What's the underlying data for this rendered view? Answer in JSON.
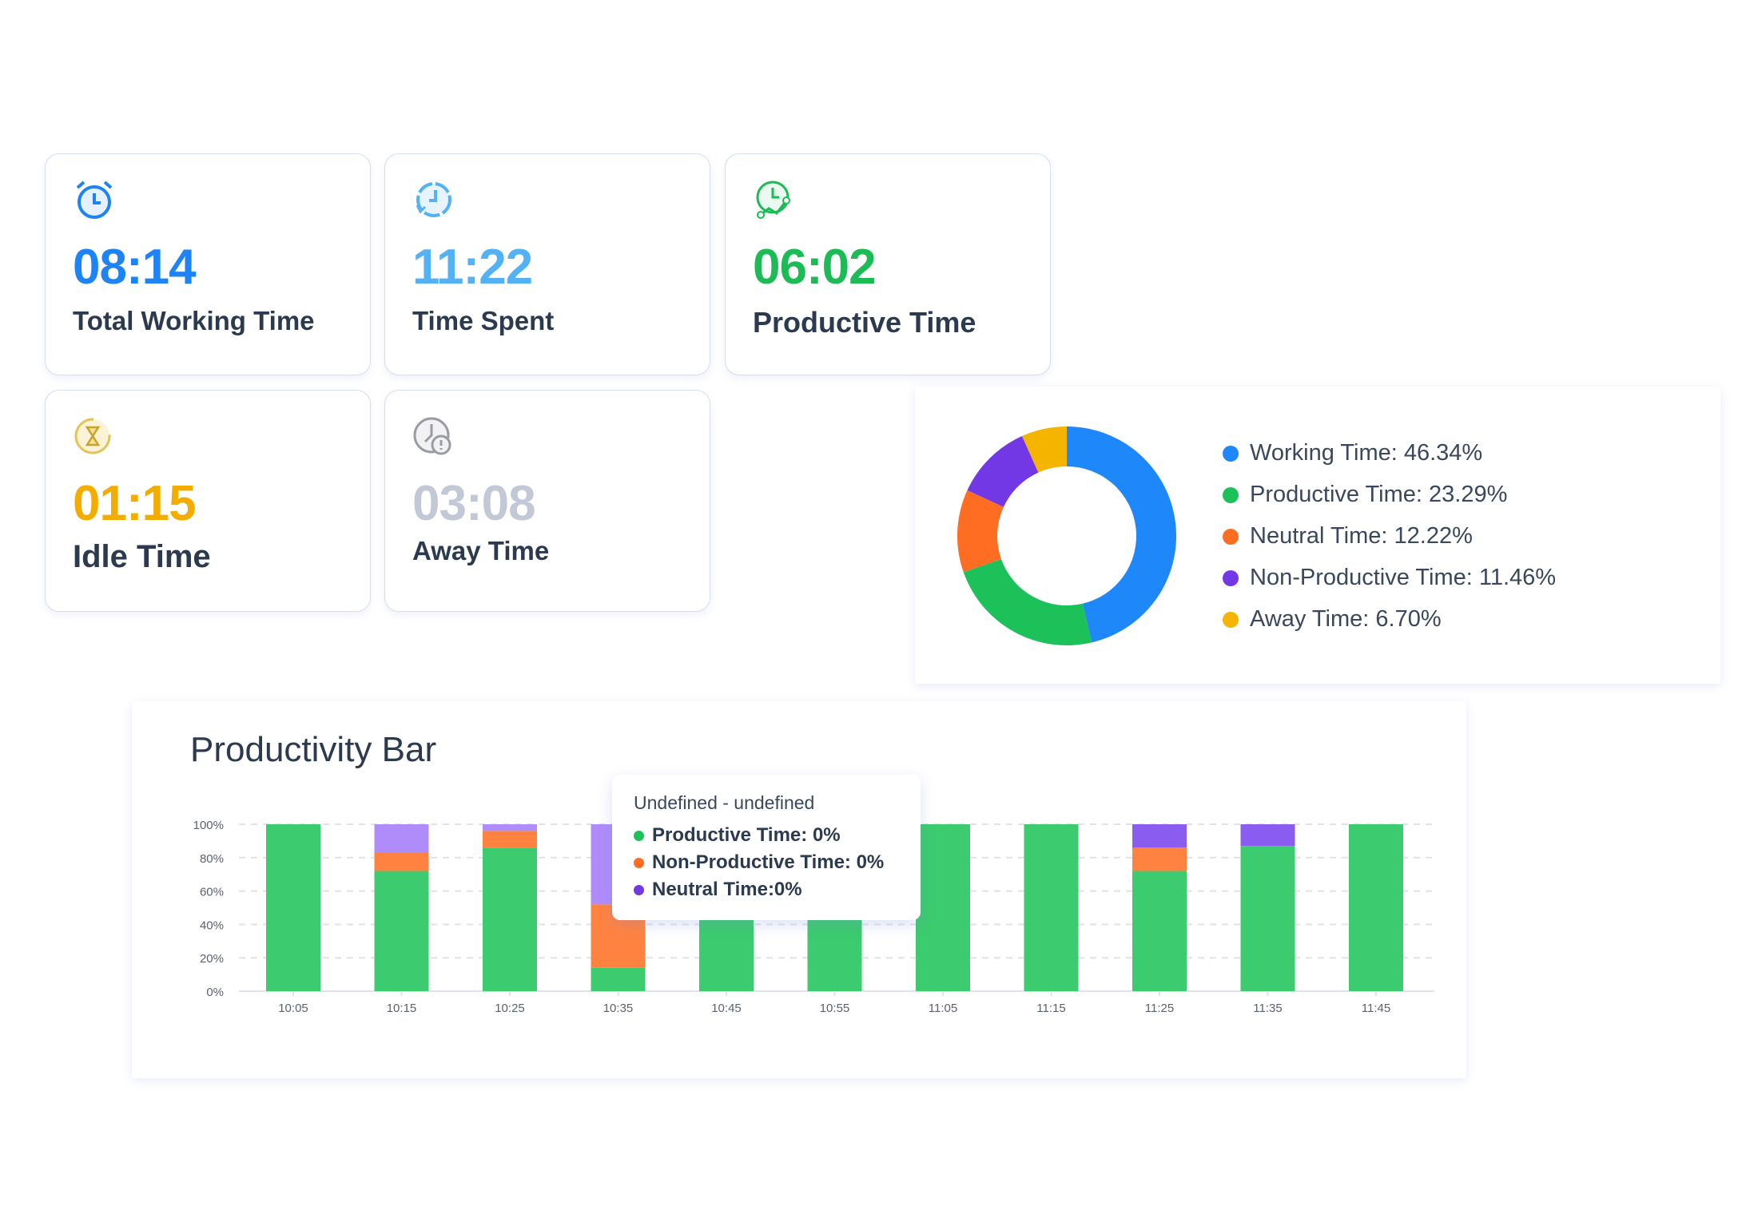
{
  "cards": [
    {
      "value": "08:14",
      "label": "Total Working Time",
      "color": "#1e84f6",
      "icon": "alarm-clock-icon"
    },
    {
      "value": "11:22",
      "label": "Time Spent",
      "color": "#52b2f5",
      "icon": "clock-refresh-icon"
    },
    {
      "value": "06:02",
      "label": "Productive Time",
      "color": "#1cbb55",
      "icon": "clock-chart-icon"
    },
    {
      "value": "01:15",
      "label": "Idle Time",
      "color": "#f2ad00",
      "icon": "hourglass-icon"
    },
    {
      "value": "03:08",
      "label": "Away Time",
      "color": "#c3c8d6",
      "icon": "clock-alert-icon"
    }
  ],
  "chart_data": [
    {
      "type": "pie",
      "donut": true,
      "legend_labels": [
        "Working Time: 46.34%",
        "Productive Time: 23.29%",
        "Neutral Time: 12.22%",
        "Non-Productive Time: 11.46%",
        "Away Time: 6.70%"
      ],
      "categories": [
        "Working Time",
        "Productive Time",
        "Neutral Time",
        "Non-Productive Time",
        "Away Time"
      ],
      "values": [
        46.34,
        23.29,
        12.22,
        11.46,
        6.7
      ],
      "colors": [
        "#1e88fa",
        "#1cc15a",
        "#ff6d22",
        "#7338e6",
        "#f4b400"
      ],
      "legend": "right"
    },
    {
      "type": "bar",
      "stacked": true,
      "title": "Productivity Bar",
      "categories": [
        "10:05",
        "10:15",
        "10:25",
        "10:35",
        "10:45",
        "10:55",
        "11:05",
        "11:15",
        "11:25",
        "11:35",
        "11:45"
      ],
      "yticks": [
        "0%",
        "20%",
        "40%",
        "60%",
        "80%",
        "100%"
      ],
      "ylim": [
        0,
        100
      ],
      "grid": true,
      "series": [
        {
          "name": "Productive Time",
          "color": "#3ccb6e",
          "values": [
            100,
            72,
            86,
            14,
            100,
            100,
            100,
            100,
            72,
            87,
            100
          ]
        },
        {
          "name": "Non-Productive Time",
          "color": "#ff8240",
          "values": [
            0,
            11,
            10,
            38,
            0,
            0,
            0,
            0,
            14,
            0,
            0
          ]
        },
        {
          "name": "Neutral Time",
          "color": "#8b5cf0",
          "values": [
            0,
            17,
            4,
            48,
            0,
            0,
            0,
            0,
            14,
            13,
            0
          ]
        }
      ],
      "tooltip": {
        "title": "Undefined - undefined",
        "rows": [
          {
            "text": "Productive Time: 0%",
            "color": "#1cc15a"
          },
          {
            "text": "Non-Productive Time: 0%",
            "color": "#ff6d22"
          },
          {
            "text": "Neutral Time:0%",
            "color": "#7338e6"
          }
        ]
      }
    }
  ]
}
